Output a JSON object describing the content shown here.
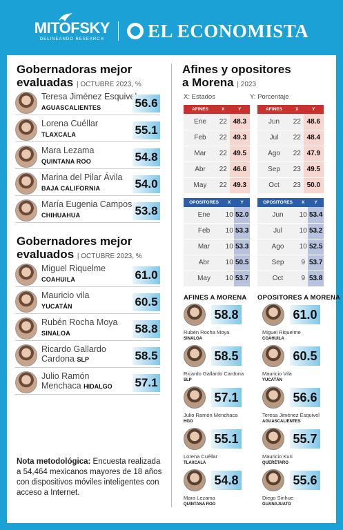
{
  "header": {
    "brand_left": "MITOFSKY",
    "brand_left_sub": "DELINEANDO RESEARCH",
    "brand_right": "EL ECONOMISTA"
  },
  "gobernadoras": {
    "title_line1": "Gobernadoras mejor",
    "title_line2": "evaluadas",
    "subtitle": "OCTUBRE 2023, %",
    "items": [
      {
        "name": "Teresa Jiménez Esquivel",
        "state": "AGUASCALIENTES",
        "score": "56.6"
      },
      {
        "name": "Lorena Cuéllar",
        "state": "TLAXCALA",
        "score": "55.1"
      },
      {
        "name": "Mara Lezama",
        "state": "QUINTANA ROO",
        "score": "54.8"
      },
      {
        "name": "Marina del Pilar Ávila",
        "state": "BAJA CALIFORNIA",
        "score": "54.0"
      },
      {
        "name": "María Eugenia Campos",
        "state": "CHIHUAHUA",
        "score": "53.8"
      }
    ]
  },
  "gobernadores": {
    "title_line1": "Gobernadores mejor",
    "title_line2": "evaluados",
    "subtitle": "OCTUBRE 2023, %",
    "items": [
      {
        "name": "Miguel Riquelme",
        "state": "COAHUILA",
        "score": "61.0"
      },
      {
        "name": "Mauricio vila",
        "state": "YUCATÁN",
        "score": "60.5"
      },
      {
        "name": "Rubén Rocha Moya",
        "state": "SINALOA",
        "score": "58.8"
      },
      {
        "name": "Ricardo Gallardo",
        "name2": "Cardona",
        "state": "SLP",
        "score": "58.5"
      },
      {
        "name": "Julio Ramón",
        "name2": "Menchaca",
        "state": "HIDALGO",
        "score": "57.1"
      }
    ]
  },
  "afines": {
    "title_line1": "Afines y opositores",
    "title_line2": "a Morena",
    "year": "2023",
    "x_label": "X: Estados",
    "y_label": "Y: Porcentaje",
    "col_x": "X",
    "col_y": "Y",
    "afines_label": "AFINES",
    "opositores_label": "OPOSITORES",
    "afines_a": [
      {
        "m": "Ene",
        "x": "22",
        "y": "48.3"
      },
      {
        "m": "Feb",
        "x": "22",
        "y": "49.3"
      },
      {
        "m": "Mar",
        "x": "22",
        "y": "49.5"
      },
      {
        "m": "Abr",
        "x": "22",
        "y": "46.6"
      },
      {
        "m": "May",
        "x": "22",
        "y": "49.3"
      }
    ],
    "afines_b": [
      {
        "m": "Jun",
        "x": "22",
        "y": "48.6"
      },
      {
        "m": "Jul",
        "x": "22",
        "y": "48.4"
      },
      {
        "m": "Ago",
        "x": "22",
        "y": "47.9"
      },
      {
        "m": "Sep",
        "x": "23",
        "y": "49.5"
      },
      {
        "m": "Oct",
        "x": "23",
        "y": "50.0"
      }
    ],
    "opo_a": [
      {
        "m": "Ene",
        "x": "10",
        "y": "52.0"
      },
      {
        "m": "Feb",
        "x": "10",
        "y": "53.3"
      },
      {
        "m": "Mar",
        "x": "10",
        "y": "53.3"
      },
      {
        "m": "Abr",
        "x": "10",
        "y": "50.5"
      },
      {
        "m": "May",
        "x": "10",
        "y": "53.7"
      }
    ],
    "opo_b": [
      {
        "m": "Jun",
        "x": "10",
        "y": "53.4"
      },
      {
        "m": "Jul",
        "x": "10",
        "y": "53.2"
      },
      {
        "m": "Ago",
        "x": "10",
        "y": "52.5"
      },
      {
        "m": "Sep",
        "x": "9",
        "y": "53.7"
      },
      {
        "m": "Oct",
        "x": "9",
        "y": "53.8"
      }
    ]
  },
  "ranking": {
    "afines_title": "AFINES A MORENA",
    "opositores_title": "OPOSITORES A MORENA",
    "afines": [
      {
        "name": "Rubén Rocha Moya",
        "state": "SINALOA",
        "score": "58.8"
      },
      {
        "name": "Ricardo Gallardo Cardona",
        "state": "SLP",
        "score": "58.5"
      },
      {
        "name": "Julio Ramón Menchaca",
        "state": "HGO",
        "score": "57.1"
      },
      {
        "name": "Lorena Cuéllar",
        "state": "TLAXCALA",
        "score": "55.1"
      },
      {
        "name": "Mara Lezama",
        "state": "QUINTANA ROO",
        "score": "54.8"
      }
    ],
    "opositores": [
      {
        "name": "Miguel Riquelme",
        "state": "COAHUILA",
        "score": "61.0"
      },
      {
        "name": "Mauricio Vila",
        "state": "YUCATÁN",
        "score": "60.5"
      },
      {
        "name": "Teresa Jiménez Esquivel",
        "state": "AGUASCALIENTES",
        "score": "56.6"
      },
      {
        "name": "Mauricio Kuri",
        "state": "QUERÉTARO",
        "score": "55.7"
      },
      {
        "name": "Diego Sinhue",
        "state": "GUANAJUATO",
        "score": "55.6"
      }
    ]
  },
  "nota": {
    "label": "Nota metodológica:",
    "text": " Encuesta realizada a 54,464 mexicanos mayores de 18 años con dispositivos móviles inteligentes con acceso a Internet."
  }
}
